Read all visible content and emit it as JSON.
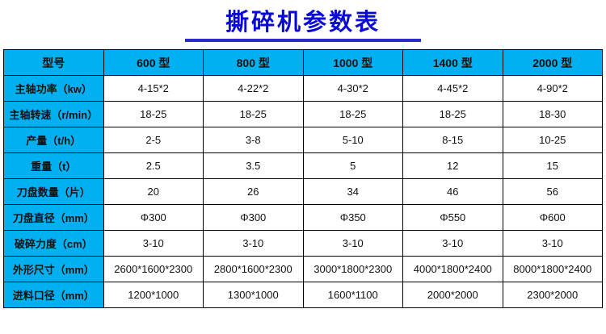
{
  "title": "撕碎机参数表",
  "colors": {
    "header_bg": "#00b0f0",
    "title_text": "#0a0ad8",
    "underline": "#2a2ac8",
    "border": "#000000"
  },
  "chart_data": {
    "type": "table",
    "title": "撕碎机参数表",
    "columns": [
      "型号",
      "600 型",
      "800 型",
      "1000 型",
      "1400 型",
      "2000 型"
    ],
    "rows": [
      [
        "主轴功率（kw）",
        "4-15*2",
        "4-22*2",
        "4-30*2",
        "4-45*2",
        "4-90*2"
      ],
      [
        "主轴转速（r/min）",
        "18-25",
        "18-25",
        "18-25",
        "18-25",
        "18-30"
      ],
      [
        "产量（t/h）",
        "2-5",
        "3-8",
        "5-10",
        "8-15",
        "10-25"
      ],
      [
        "重量（t）",
        "2.5",
        "3.5",
        "5",
        "12",
        "15"
      ],
      [
        "刀盘数量（片）",
        "20",
        "26",
        "34",
        "46",
        "56"
      ],
      [
        "刀盘直径（mm）",
        "Φ300",
        "Φ300",
        "Φ350",
        "Φ550",
        "Φ600"
      ],
      [
        "破碎力度（cm）",
        "3-10",
        "3-10",
        "3-10",
        "3-10",
        "3-10"
      ],
      [
        "外形尺寸（mm）",
        "2600*1600*2300",
        "2800*1600*2300",
        "3000*1800*2300",
        "4000*1800*2400",
        "8000*1800*2400"
      ],
      [
        "进料口径（mm）",
        "1200*1000",
        "1300*1000",
        "1600*1100",
        "2000*2000",
        "2300*2000"
      ]
    ]
  }
}
